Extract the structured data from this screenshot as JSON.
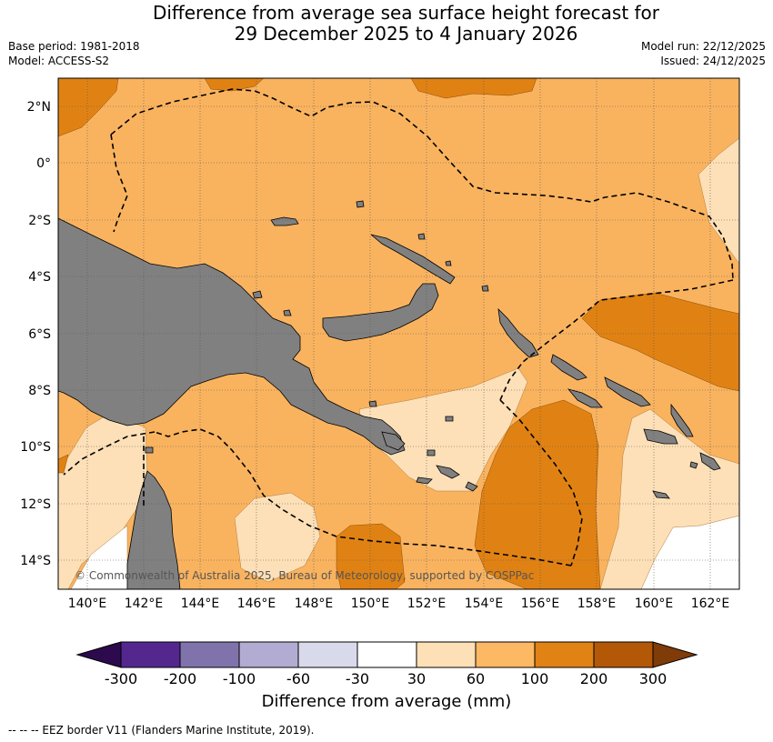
{
  "title_line1": "Difference from average sea surface height forecast for",
  "title_line2": "29 December 2025 to 4 January 2026",
  "meta": {
    "base_period": "Base period: 1981-2018",
    "model": "Model: ACCESS-S2",
    "model_run": "Model run: 22/12/2025",
    "issued": "Issued: 24/12/2025"
  },
  "map": {
    "lat_labels": [
      "2°N",
      "0°",
      "2°S",
      "4°S",
      "6°S",
      "8°S",
      "10°S",
      "12°S",
      "14°S"
    ],
    "lon_labels": [
      "140°E",
      "142°E",
      "144°E",
      "146°E",
      "148°E",
      "150°E",
      "152°E",
      "154°E",
      "156°E",
      "158°E",
      "160°E",
      "162°E"
    ],
    "copyright": "© Commonwealth of Australia 2025, Bureau of Meteorology, supported by COSPPac",
    "colors": {
      "land": "#808080",
      "band_60_100": "#f9b35f",
      "band_30_60": "#fde0b7",
      "band_100_200": "#e08213",
      "band_neutral": "#ffffff"
    }
  },
  "colorbar": {
    "tick_labels": [
      "-300",
      "-200",
      "-100",
      "-60",
      "-30",
      "30",
      "60",
      "100",
      "200",
      "300"
    ],
    "colors": [
      "#2d0a4e",
      "#54278f",
      "#8073ac",
      "#b2abd2",
      "#d8daeb",
      "#ffffff",
      "#fee0b6",
      "#fdb863",
      "#e08214",
      "#b35806",
      "#7f3b08"
    ],
    "label": "Difference from average (mm)"
  },
  "footnote": "--  --  -- EEZ border V11 (Flanders Marine Institute, 2019)."
}
